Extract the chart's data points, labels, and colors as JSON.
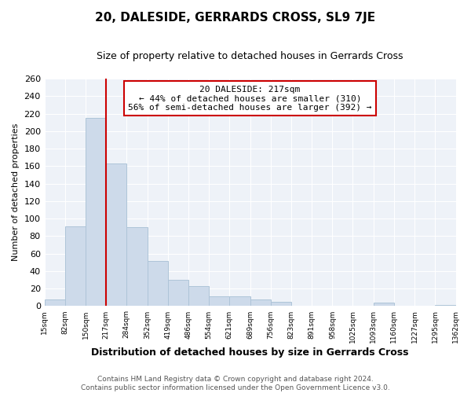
{
  "title": "20, DALESIDE, GERRARDS CROSS, SL9 7JE",
  "subtitle": "Size of property relative to detached houses in Gerrards Cross",
  "xlabel": "Distribution of detached houses by size in Gerrards Cross",
  "ylabel": "Number of detached properties",
  "bar_edges": [
    15,
    82,
    150,
    217,
    284,
    352,
    419,
    486,
    554,
    621,
    689,
    756,
    823,
    891,
    958,
    1025,
    1093,
    1160,
    1227,
    1295,
    1362
  ],
  "bar_heights": [
    8,
    91,
    215,
    163,
    90,
    52,
    30,
    23,
    11,
    11,
    8,
    5,
    0,
    0,
    0,
    0,
    4,
    0,
    0,
    1
  ],
  "bar_color": "#cddaea",
  "bar_edgecolor": "#aec4d8",
  "vline_x": 217,
  "vline_color": "#cc0000",
  "annotation_title": "20 DALESIDE: 217sqm",
  "annotation_line1": "← 44% of detached houses are smaller (310)",
  "annotation_line2": "56% of semi-detached houses are larger (392) →",
  "annotation_box_edgecolor": "#cc0000",
  "annotation_box_facecolor": "#ffffff",
  "ylim": [
    0,
    260
  ],
  "yticks": [
    0,
    20,
    40,
    60,
    80,
    100,
    120,
    140,
    160,
    180,
    200,
    220,
    240,
    260
  ],
  "xtick_labels": [
    "15sqm",
    "82sqm",
    "150sqm",
    "217sqm",
    "284sqm",
    "352sqm",
    "419sqm",
    "486sqm",
    "554sqm",
    "621sqm",
    "689sqm",
    "756sqm",
    "823sqm",
    "891sqm",
    "958sqm",
    "1025sqm",
    "1093sqm",
    "1160sqm",
    "1227sqm",
    "1295sqm",
    "1362sqm"
  ],
  "footer_line1": "Contains HM Land Registry data © Crown copyright and database right 2024.",
  "footer_line2": "Contains public sector information licensed under the Open Government Licence v3.0.",
  "bg_color": "#ffffff",
  "plot_bg_color": "#eef2f8",
  "grid_color": "#ffffff",
  "title_fontsize": 11,
  "subtitle_fontsize": 9,
  "ylabel_fontsize": 8,
  "xlabel_fontsize": 9,
  "xtick_fontsize": 6.5,
  "ytick_fontsize": 8,
  "footer_fontsize": 6.5,
  "annot_fontsize": 8
}
